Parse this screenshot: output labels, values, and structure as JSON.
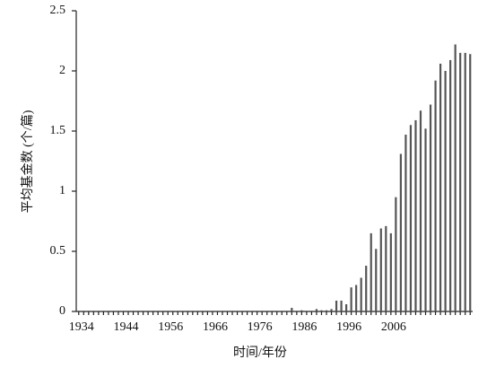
{
  "chart_data": {
    "type": "bar",
    "x_label": "时间/年份",
    "y_label": "平均基金数 (个/篇)",
    "categories": [
      "1934",
      null,
      null,
      null,
      null,
      null,
      null,
      null,
      null,
      "1944",
      null,
      null,
      null,
      null,
      null,
      null,
      null,
      null,
      "1956",
      null,
      null,
      null,
      null,
      null,
      null,
      null,
      null,
      "1966",
      null,
      null,
      null,
      null,
      null,
      null,
      null,
      null,
      "1976",
      null,
      null,
      null,
      null,
      null,
      null,
      null,
      null,
      "1986",
      null,
      null,
      null,
      null,
      null,
      null,
      null,
      null,
      "1996",
      null,
      null,
      null,
      null,
      null,
      null,
      null,
      null,
      "2006",
      null,
      null,
      null,
      null,
      null,
      null,
      null,
      null,
      null,
      null,
      null,
      null,
      null,
      null,
      null,
      null
    ],
    "values": [
      0,
      0,
      0,
      0,
      0,
      0,
      0,
      0,
      0,
      0,
      0,
      0,
      0,
      0,
      0,
      0,
      0,
      0,
      0,
      0,
      0,
      0,
      0,
      0,
      0,
      0,
      0,
      0,
      0,
      0,
      0,
      0,
      0,
      0,
      0,
      0,
      0,
      0,
      0,
      0,
      0,
      0,
      0,
      0.03,
      0,
      0.01,
      0,
      0,
      0.02,
      0.01,
      0.01,
      0.02,
      0.09,
      0.09,
      0.06,
      0.2,
      0.22,
      0.28,
      0.38,
      0.65,
      0.52,
      0.69,
      0.71,
      0.65,
      0.95,
      1.31,
      1.47,
      1.55,
      1.59,
      1.67,
      1.52,
      1.72,
      1.92,
      2.06,
      2.0,
      2.09,
      2.22,
      2.15,
      2.15,
      2.14
    ],
    "color": "#555555",
    "ylim": [
      0,
      2.5
    ],
    "yticks": [
      0,
      0.5,
      1,
      1.5,
      2,
      2.5
    ]
  }
}
